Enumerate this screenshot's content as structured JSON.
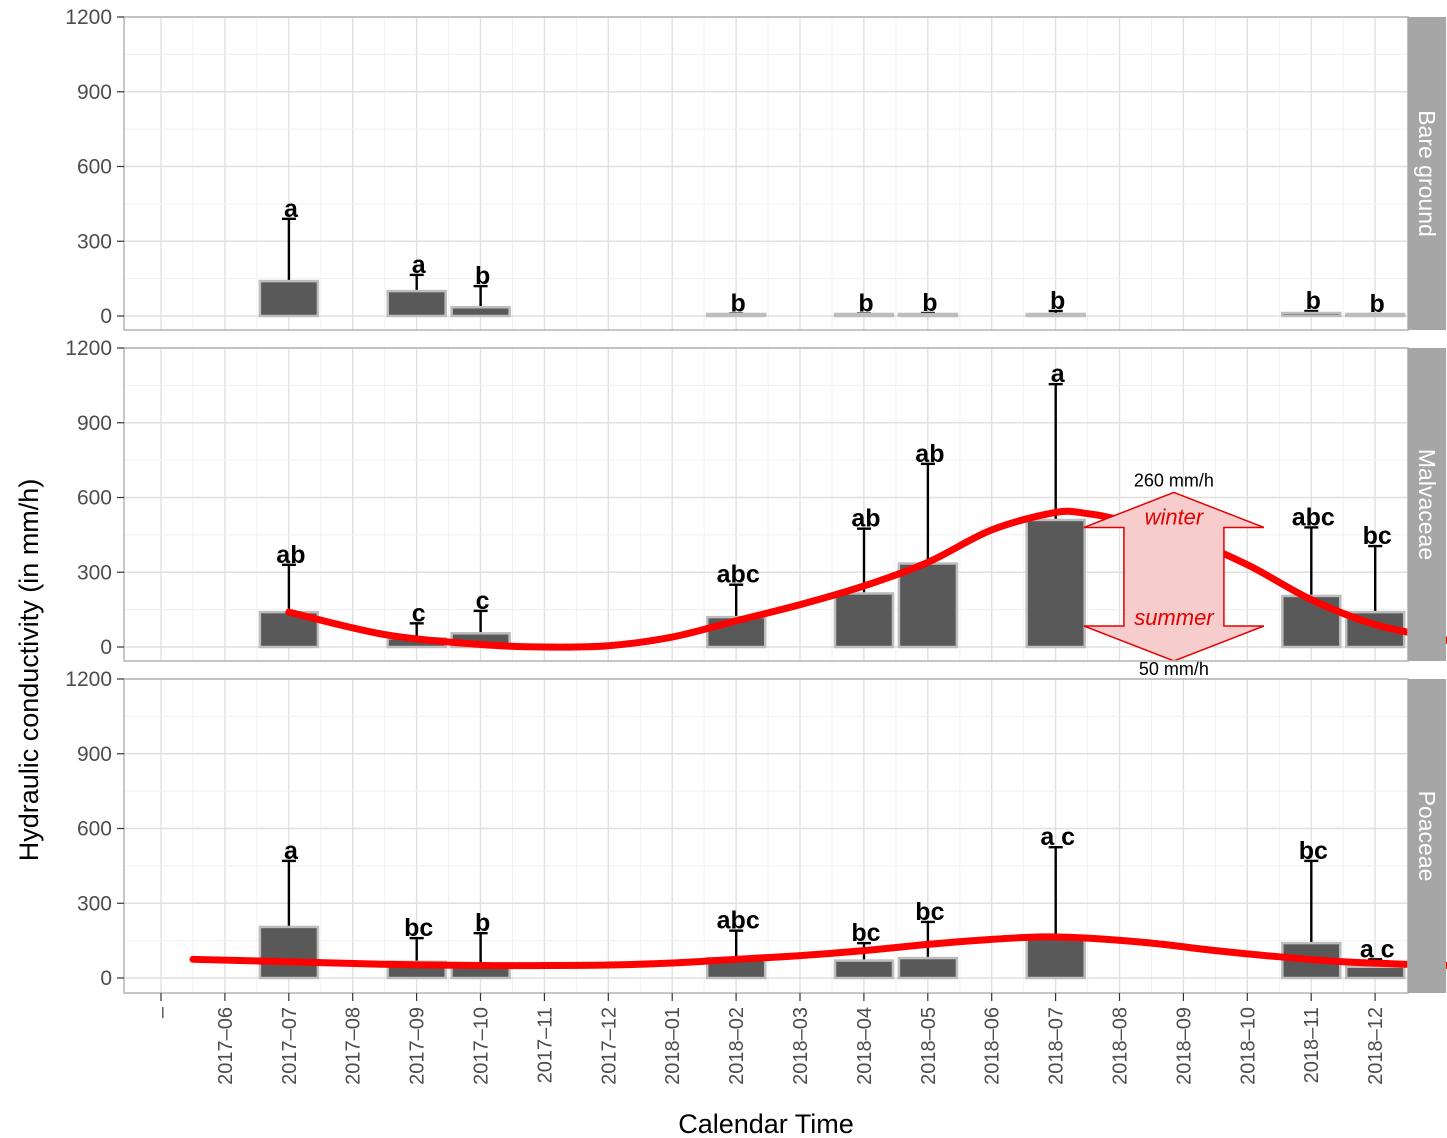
{
  "chart_data": {
    "type": "bar",
    "xlabel": "Calendar Time",
    "ylabel": "Hydraulic conductivity (in mm/h)",
    "ylim": [
      0,
      1200
    ],
    "yticks": [
      0,
      300,
      600,
      900,
      1200
    ],
    "x_ticks": [
      "–",
      "2017–06",
      "2017–07",
      "2017–08",
      "2017–09",
      "2017–10",
      "2017–11",
      "2017–12",
      "2018–01",
      "2018–02",
      "2018–03",
      "2018–04",
      "2018–05",
      "2018–06",
      "2018–07",
      "2018–08",
      "2018–09",
      "2018–10",
      "2018–11",
      "2018–12"
    ],
    "colors": {
      "bar": "#595959",
      "bar_border": "#bdbdbd",
      "curve": "#ff0000",
      "strip": "#a6a6a6",
      "panel_border": "#b3b3b3",
      "grid": "#e0e0e0",
      "arrow_fill": "#f6cccc",
      "arrow_stroke": "#e60000"
    },
    "panels": [
      {
        "strip": "Bare ground",
        "bars": [
          {
            "x": 1.0,
            "value": 140,
            "error": 390,
            "label": "a"
          },
          {
            "x": 3.0,
            "value": 100,
            "error": 165,
            "label": "a"
          },
          {
            "x": 4.0,
            "value": 35,
            "error": 120,
            "label": "b"
          },
          {
            "x": 8.0,
            "value": 5,
            "error": 10,
            "label": "b"
          },
          {
            "x": 10.0,
            "value": 5,
            "error": 10,
            "label": "b"
          },
          {
            "x": 11.0,
            "value": 8,
            "error": 12,
            "label": "b"
          },
          {
            "x": 13.0,
            "value": 8,
            "error": 20,
            "label": "b"
          },
          {
            "x": 17.0,
            "value": 12,
            "error": 20,
            "label": "b"
          },
          {
            "x": 18.0,
            "value": 5,
            "error": 8,
            "label": "b"
          }
        ],
        "curve": []
      },
      {
        "strip": "Malvaceae",
        "bars": [
          {
            "x": 1.0,
            "value": 140,
            "error": 330,
            "label": "ab"
          },
          {
            "x": 3.0,
            "value": 35,
            "error": 95,
            "label": "c"
          },
          {
            "x": 4.0,
            "value": 55,
            "error": 145,
            "label": "c"
          },
          {
            "x": 8.0,
            "value": 120,
            "error": 250,
            "label": "abc"
          },
          {
            "x": 10.0,
            "value": 215,
            "error": 475,
            "label": "ab"
          },
          {
            "x": 11.0,
            "value": 335,
            "error": 735,
            "label": "ab"
          },
          {
            "x": 13.0,
            "value": 510,
            "error": 1055,
            "label": "a"
          },
          {
            "x": 17.0,
            "value": 205,
            "error": 480,
            "label": "abc"
          },
          {
            "x": 18.0,
            "value": 140,
            "error": 405,
            "label": "bc"
          }
        ],
        "curve": [
          [
            1.0,
            140
          ],
          [
            2.5,
            50
          ],
          [
            4.0,
            10
          ],
          [
            5.0,
            0
          ],
          [
            6.0,
            5
          ],
          [
            7.0,
            40
          ],
          [
            8.0,
            105
          ],
          [
            9.0,
            170
          ],
          [
            10.0,
            245
          ],
          [
            11.0,
            340
          ],
          [
            12.0,
            470
          ],
          [
            13.0,
            540
          ],
          [
            13.5,
            535
          ],
          [
            14.0,
            510
          ],
          [
            15.0,
            440
          ],
          [
            16.0,
            330
          ],
          [
            17.0,
            190
          ],
          [
            18.0,
            90
          ],
          [
            19.0,
            35
          ],
          [
            19.35,
            10
          ]
        ],
        "annotation": {
          "top_text": "260 mm/h",
          "winter_text": "winter",
          "summer_text": "summer",
          "bottom_text": "50 mm/h",
          "x_center": 14.85,
          "top_arrow_value": 540,
          "bottom_arrow_value": 0
        }
      },
      {
        "strip": "Poaceae",
        "bars": [
          {
            "x": 1.0,
            "value": 205,
            "error": 470,
            "label": "a"
          },
          {
            "x": 3.0,
            "value": 65,
            "error": 160,
            "label": "bc"
          },
          {
            "x": 4.0,
            "value": 55,
            "error": 180,
            "label": "b"
          },
          {
            "x": 8.0,
            "value": 80,
            "error": 190,
            "label": "abc"
          },
          {
            "x": 10.0,
            "value": 70,
            "error": 140,
            "label": "bc"
          },
          {
            "x": 11.0,
            "value": 80,
            "error": 225,
            "label": "bc"
          },
          {
            "x": 13.0,
            "value": 165,
            "error": 525,
            "label": "a c"
          },
          {
            "x": 17.0,
            "value": 140,
            "error": 470,
            "label": "bc"
          },
          {
            "x": 18.0,
            "value": 45,
            "error": 75,
            "label": "a c"
          }
        ],
        "curve": [
          [
            -0.5,
            75
          ],
          [
            1.0,
            65
          ],
          [
            2.5,
            55
          ],
          [
            4.0,
            50
          ],
          [
            5.0,
            50
          ],
          [
            6.0,
            52
          ],
          [
            7.0,
            60
          ],
          [
            8.0,
            75
          ],
          [
            9.0,
            90
          ],
          [
            10.0,
            110
          ],
          [
            11.0,
            135
          ],
          [
            12.0,
            155
          ],
          [
            12.8,
            165
          ],
          [
            13.5,
            160
          ],
          [
            14.5,
            140
          ],
          [
            15.5,
            110
          ],
          [
            16.5,
            85
          ],
          [
            17.5,
            65
          ],
          [
            18.5,
            55
          ],
          [
            19.2,
            50
          ]
        ]
      }
    ]
  }
}
